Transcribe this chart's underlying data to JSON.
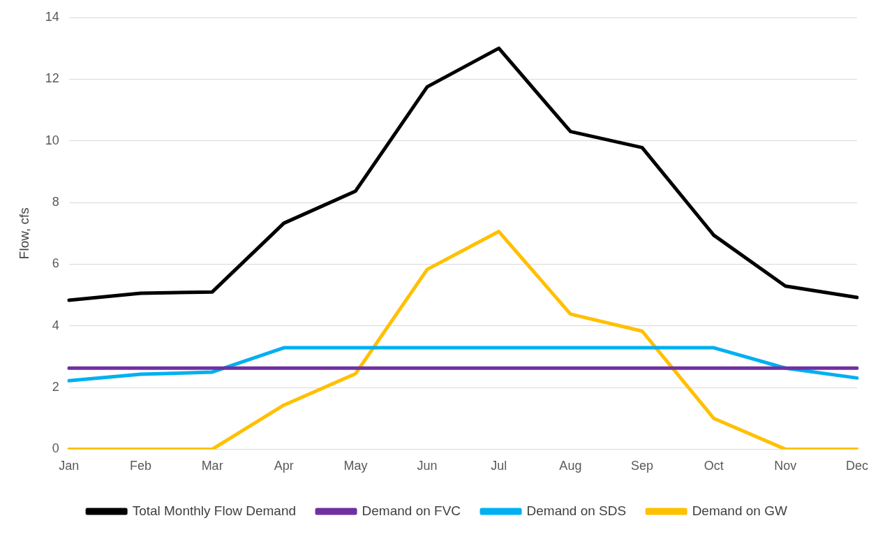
{
  "chart_data": {
    "type": "line",
    "ylabel": "Flow, cfs",
    "categories": [
      "Jan",
      "Feb",
      "Mar",
      "Apr",
      "May",
      "Jun",
      "Jul",
      "Aug",
      "Sep",
      "Oct",
      "Nov",
      "Dec"
    ],
    "series": [
      {
        "name": "Total Monthly Flow Demand",
        "color": "#000000",
        "values": [
          4.83,
          5.06,
          5.1,
          7.33,
          8.37,
          11.75,
          13.0,
          10.3,
          9.78,
          6.94,
          5.29,
          4.92
        ]
      },
      {
        "name": "Demand on FVC",
        "color": "#7030a0",
        "values": [
          2.63,
          2.63,
          2.63,
          2.63,
          2.63,
          2.63,
          2.63,
          2.63,
          2.63,
          2.63,
          2.63,
          2.63
        ]
      },
      {
        "name": "Demand on SDS",
        "color": "#00b0f0",
        "values": [
          2.22,
          2.43,
          2.5,
          3.29,
          3.29,
          3.29,
          3.29,
          3.29,
          3.29,
          3.29,
          2.63,
          2.31
        ]
      },
      {
        "name": "Demand on GW",
        "color": "#ffc000",
        "values": [
          0,
          0,
          0,
          1.43,
          2.45,
          5.83,
          7.06,
          4.38,
          3.83,
          1.0,
          0,
          0
        ]
      }
    ],
    "ylim": [
      0,
      14
    ],
    "yticks": [
      0,
      2,
      4,
      6,
      8,
      10,
      12,
      14
    ],
    "grid": "y",
    "legend": "bottom",
    "marker": "none",
    "line_style": "solid"
  }
}
